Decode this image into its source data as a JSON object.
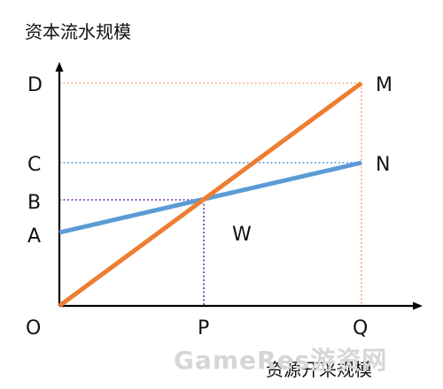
{
  "diagram": {
    "y_axis_title": "资本流水规模",
    "x_axis_title": "资源开采规模",
    "origin_label": "O",
    "y_points": [
      "A",
      "B",
      "C",
      "D"
    ],
    "x_points": [
      "P",
      "Q"
    ],
    "line_labels": {
      "steep": "M",
      "shallow": "N"
    },
    "region_label": "W",
    "colors": {
      "axis": "#000000",
      "steep_line": "#ED7D31",
      "shallow_line": "#5B9BD5",
      "guide_d": "#F4B183",
      "guide_q": "#F4B183",
      "guide_c": "#5B9BD5",
      "guide_b": "#7030A0",
      "guide_p": "#7030A0"
    }
  },
  "watermark": {
    "text": "GameRes游资网"
  }
}
